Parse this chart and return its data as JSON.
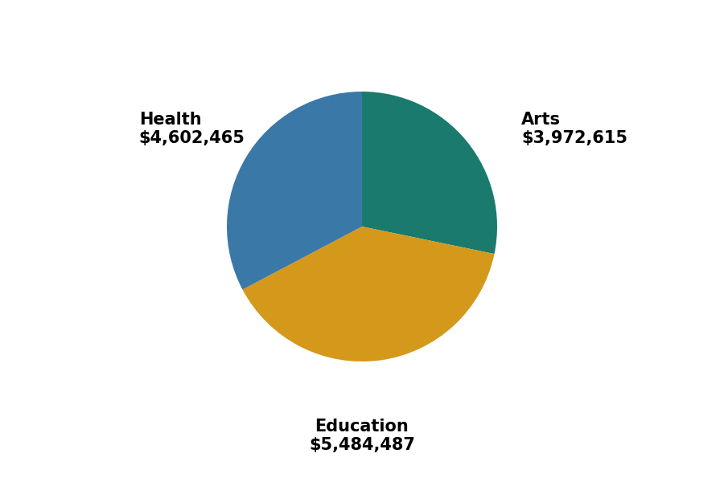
{
  "categories": [
    "Arts",
    "Education",
    "Health"
  ],
  "values": [
    3972615,
    5484487,
    4602465
  ],
  "colors": [
    "#1a7a6e",
    "#d4981a",
    "#3a78a8"
  ],
  "background_color": "#ffffff",
  "startangle": 90,
  "font_size": 15,
  "font_weight": "bold",
  "arts_label": "Arts\n$3,972,615",
  "education_label": "Education\n$5,484,487",
  "health_label": "Health\n$4,602,465"
}
